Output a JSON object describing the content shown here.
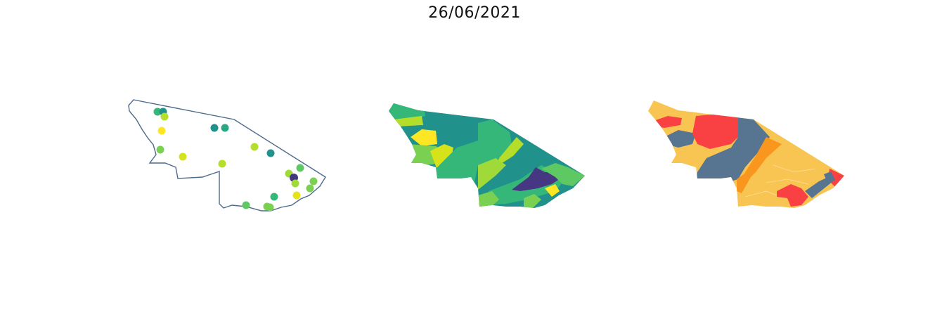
{
  "figure": {
    "title": "26/06/2021"
  },
  "panels": [
    {
      "type": "points"
    },
    {
      "type": "choropleth-viridis"
    },
    {
      "type": "choropleth-categorical"
    }
  ],
  "colors": {
    "outline": "#4c6a8c",
    "viridis_dark": "#453781",
    "viridis_teal": "#21918c",
    "viridis_green": "#35b779",
    "viridis_lightgreen": "#7ad151",
    "viridis_lime": "#b5de2b",
    "viridis_yellow": "#fde725",
    "cat_yellow": "#f9c552",
    "cat_red": "#f94144",
    "cat_slate": "#577590",
    "cat_orange": "#f8961e"
  }
}
